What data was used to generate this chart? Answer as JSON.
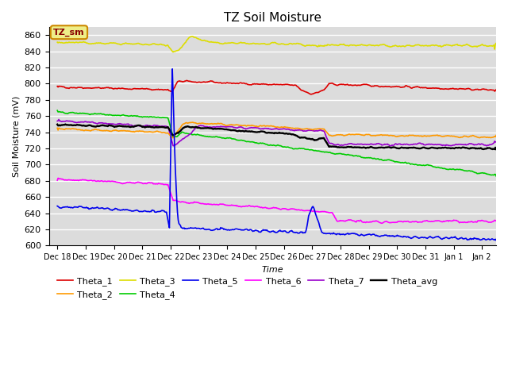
{
  "title": "TZ Soil Moisture",
  "xlabel": "Time",
  "ylabel": "Soil Moisture (mV)",
  "ylim": [
    600,
    870
  ],
  "yticks": [
    600,
    620,
    640,
    660,
    680,
    700,
    720,
    740,
    760,
    780,
    800,
    820,
    840,
    860
  ],
  "xlim": [
    -0.3,
    15.5
  ],
  "xtick_labels": [
    "Dec 18",
    "Dec 19",
    "Dec 20",
    "Dec 21",
    "Dec 22",
    "Dec 23",
    "Dec 24",
    "Dec 25",
    "Dec 26",
    "Dec 27",
    "Dec 28",
    "Dec 29",
    "Dec 30",
    "Dec 31",
    "Jan 1",
    "Jan 2"
  ],
  "xtick_positions": [
    0,
    1,
    2,
    3,
    4,
    5,
    6,
    7,
    8,
    9,
    10,
    11,
    12,
    13,
    14,
    15
  ],
  "spike_x": 4.0,
  "colors": {
    "Theta_1": "#dd0000",
    "Theta_2": "#ff9900",
    "Theta_3": "#dddd00",
    "Theta_4": "#00cc00",
    "Theta_5": "#0000ee",
    "Theta_6": "#ff00ff",
    "Theta_7": "#9900cc",
    "Theta_avg": "#000000"
  },
  "background_color": "#dcdcdc",
  "legend_box_facecolor": "#eeee88",
  "legend_box_edgecolor": "#cc8800",
  "legend_box_text": "TZ_sm",
  "legend_box_textcolor": "#880000"
}
